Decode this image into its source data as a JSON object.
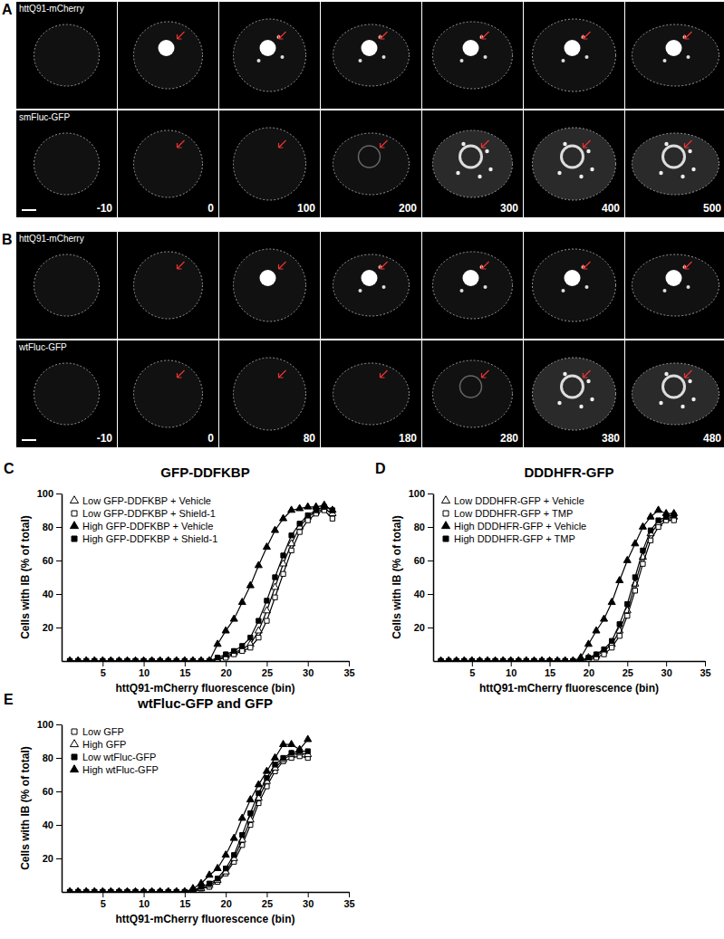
{
  "image_panels": [
    {
      "label": "A",
      "rows": [
        {
          "name": "httQ91-mCherry"
        },
        {
          "name": "smFluc-GFP"
        }
      ],
      "times": [
        -10,
        0,
        100,
        200,
        300,
        400,
        500
      ]
    },
    {
      "label": "B",
      "rows": [
        {
          "name": "httQ91-mCherry"
        },
        {
          "name": "wtFluc-GFP"
        }
      ],
      "times": [
        -10,
        0,
        80,
        180,
        280,
        380,
        480
      ]
    }
  ],
  "chart_data": [
    {
      "type": "line",
      "title": "GFP-DDFKBP",
      "annotations": [
        "C"
      ],
      "x_label": "httQ91-mCherry fluorescence (bin)",
      "y_label": "Cells with IB (% of total)",
      "xlim": [
        0,
        35
      ],
      "xticks": [
        5,
        10,
        15,
        20,
        25,
        30,
        35
      ],
      "ylim": [
        0,
        100
      ],
      "yticks": [
        20,
        40,
        60,
        80,
        100
      ],
      "grid": false,
      "legend": "upper left",
      "x": [
        1,
        2,
        3,
        4,
        5,
        6,
        7,
        8,
        9,
        10,
        11,
        12,
        13,
        14,
        15,
        16,
        17,
        18,
        19,
        20,
        21,
        22,
        23,
        24,
        25,
        26,
        27,
        28,
        29,
        30,
        31,
        32,
        33
      ],
      "series": [
        {
          "name": "Low GFP-DDFKBP + Vehicle",
          "color": "#000000",
          "marker": "triangle-open",
          "line_style": "solid",
          "values": [
            0,
            0,
            0,
            0,
            0,
            0,
            0,
            0,
            0,
            0,
            0,
            0,
            0,
            0,
            0,
            0,
            0,
            0,
            1,
            3,
            5,
            7,
            10,
            18,
            30,
            44,
            58,
            70,
            80,
            86,
            89,
            91,
            88
          ]
        },
        {
          "name": "Low GFP-DDFKBP + Shield-1",
          "color": "#000000",
          "marker": "square-open",
          "line_style": "solid",
          "values": [
            0,
            0,
            0,
            0,
            0,
            0,
            0,
            0,
            0,
            0,
            0,
            0,
            0,
            0,
            0,
            0,
            0,
            0,
            1,
            2,
            4,
            6,
            8,
            14,
            24,
            38,
            52,
            66,
            77,
            84,
            88,
            90,
            85
          ]
        },
        {
          "name": "High GFP-DDFKBP + Vehicle",
          "color": "#000000",
          "marker": "triangle",
          "line_style": "solid",
          "values": [
            0,
            0,
            0,
            0,
            0,
            0,
            0,
            0,
            0,
            0,
            0,
            0,
            0,
            0,
            0,
            0,
            0,
            0,
            10,
            18,
            25,
            35,
            45,
            57,
            68,
            78,
            85,
            90,
            91,
            92,
            92,
            93,
            90
          ]
        },
        {
          "name": "High GFP-DDFKBP + Shield-1",
          "color": "#000000",
          "marker": "square",
          "line_style": "solid",
          "values": [
            0,
            0,
            0,
            0,
            0,
            0,
            0,
            0,
            0,
            0,
            0,
            0,
            0,
            0,
            0,
            0,
            0,
            0,
            2,
            4,
            6,
            9,
            14,
            24,
            36,
            50,
            63,
            75,
            82,
            87,
            90,
            92,
            90
          ]
        }
      ]
    },
    {
      "type": "line",
      "title": "DDDHFR-GFP",
      "annotations": [
        "D"
      ],
      "x_label": "httQ91-mCherry fluorescence (bin)",
      "y_label": "Cells with IB (% of total)",
      "xlim": [
        0,
        35
      ],
      "xticks": [
        5,
        10,
        15,
        20,
        25,
        30,
        35
      ],
      "ylim": [
        0,
        100
      ],
      "yticks": [
        20,
        40,
        60,
        80,
        100
      ],
      "grid": false,
      "legend": "upper left",
      "x": [
        1,
        2,
        3,
        4,
        5,
        6,
        7,
        8,
        9,
        10,
        11,
        12,
        13,
        14,
        15,
        16,
        17,
        18,
        19,
        20,
        21,
        22,
        23,
        24,
        25,
        26,
        27,
        28,
        29,
        30,
        31
      ],
      "series": [
        {
          "name": "Low DDDHFR-GFP + Vehicle",
          "color": "#000000",
          "marker": "triangle-open",
          "line_style": "solid",
          "values": [
            0,
            0,
            0,
            0,
            0,
            0,
            0,
            0,
            0,
            0,
            0,
            0,
            0,
            0,
            0,
            0,
            0,
            0,
            0,
            2,
            3,
            6,
            10,
            18,
            30,
            46,
            62,
            76,
            82,
            85,
            86
          ]
        },
        {
          "name": "Low DDDHFR-GFP + TMP",
          "color": "#000000",
          "marker": "square-open",
          "line_style": "solid",
          "values": [
            0,
            0,
            0,
            0,
            0,
            0,
            0,
            0,
            0,
            0,
            0,
            0,
            0,
            0,
            0,
            0,
            0,
            0,
            0,
            1,
            2,
            4,
            8,
            15,
            27,
            42,
            58,
            72,
            80,
            84,
            84
          ]
        },
        {
          "name": "High DDDHFR-GFP + Vehicle",
          "color": "#000000",
          "marker": "triangle",
          "line_style": "solid",
          "values": [
            0,
            0,
            0,
            0,
            0,
            0,
            0,
            0,
            0,
            0,
            0,
            0,
            0,
            0,
            0,
            0,
            0,
            0,
            2,
            10,
            18,
            25,
            35,
            48,
            60,
            70,
            80,
            86,
            90,
            88,
            88
          ]
        },
        {
          "name": "High DDDHFR-GFP + TMP",
          "color": "#000000",
          "marker": "square",
          "line_style": "solid",
          "values": [
            0,
            0,
            0,
            0,
            0,
            0,
            0,
            0,
            0,
            0,
            0,
            0,
            0,
            0,
            0,
            0,
            0,
            0,
            0,
            2,
            4,
            7,
            12,
            22,
            34,
            50,
            66,
            78,
            84,
            86,
            87
          ]
        }
      ]
    },
    {
      "type": "line",
      "title": "wtFluc-GFP and GFP",
      "annotations": [
        "E"
      ],
      "x_label": "httQ91-mCherry fluorescence (bin)",
      "y_label": "Cells with IB (% of total)",
      "xlim": [
        0,
        35
      ],
      "xticks": [
        5,
        10,
        15,
        20,
        25,
        30,
        35
      ],
      "ylim": [
        0,
        100
      ],
      "yticks": [
        20,
        40,
        60,
        80,
        100
      ],
      "grid": false,
      "legend": "upper left",
      "x": [
        1,
        2,
        3,
        4,
        5,
        6,
        7,
        8,
        9,
        10,
        11,
        12,
        13,
        14,
        15,
        16,
        17,
        18,
        19,
        20,
        21,
        22,
        23,
        24,
        25,
        26,
        27,
        28,
        29,
        30
      ],
      "series": [
        {
          "name": "Low GFP",
          "color": "#000000",
          "marker": "square-open",
          "line_style": "solid",
          "values": [
            0,
            0,
            0,
            0,
            0,
            0,
            0,
            0,
            0,
            0,
            0,
            0,
            0,
            0,
            0,
            0,
            2,
            3,
            6,
            11,
            18,
            28,
            40,
            53,
            63,
            72,
            78,
            80,
            81,
            80
          ]
        },
        {
          "name": "High GFP",
          "color": "#000000",
          "marker": "triangle-open",
          "line_style": "solid",
          "values": [
            0,
            0,
            0,
            0,
            0,
            0,
            0,
            0,
            0,
            0,
            0,
            0,
            0,
            0,
            0,
            1,
            2,
            4,
            7,
            12,
            20,
            31,
            43,
            56,
            66,
            74,
            79,
            82,
            83,
            82
          ]
        },
        {
          "name": "Low wtFluc-GFP",
          "color": "#000000",
          "marker": "square",
          "line_style": "solid",
          "values": [
            0,
            0,
            0,
            0,
            0,
            0,
            0,
            0,
            0,
            0,
            0,
            0,
            0,
            0,
            0,
            1,
            3,
            5,
            8,
            14,
            22,
            34,
            47,
            59,
            68,
            76,
            80,
            83,
            84,
            84
          ]
        },
        {
          "name": "High wtFluc-GFP",
          "color": "#000000",
          "marker": "triangle",
          "line_style": "solid",
          "values": [
            0,
            0,
            0,
            0,
            0,
            0,
            0,
            0,
            0,
            0,
            0,
            0,
            0,
            0,
            0,
            2,
            5,
            10,
            14,
            22,
            32,
            44,
            55,
            64,
            72,
            80,
            88,
            88,
            85,
            91
          ]
        }
      ]
    }
  ]
}
